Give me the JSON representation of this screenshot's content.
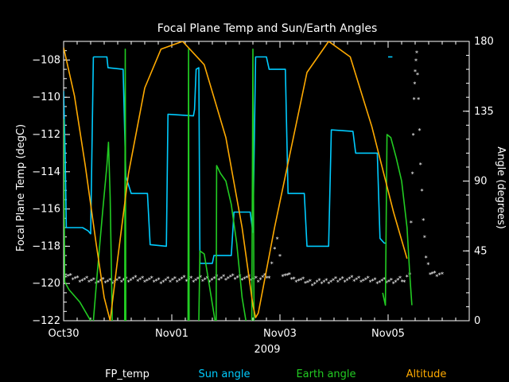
{
  "chart_data": {
    "type": "line",
    "title": "Focal Plane Temp and Sun/Earth Angles",
    "xlabel": "2009",
    "ylabel_left": "Focal Plane Temp (degC)",
    "ylabel_right": "Angle (degrees)",
    "x_unit": "days since Oct30 2009",
    "xlim": [
      0,
      7.5
    ],
    "xticks": [
      {
        "x": 0,
        "label": "Oct30"
      },
      {
        "x": 2,
        "label": "Nov01"
      },
      {
        "x": 4,
        "label": "Nov03"
      },
      {
        "x": 6,
        "label": "Nov05"
      }
    ],
    "ylim_left": [
      -122,
      -107
    ],
    "yticks_left": [
      {
        "value": -108,
        "label": "−108"
      },
      {
        "value": -110,
        "label": "−110"
      },
      {
        "value": -112,
        "label": "−112"
      },
      {
        "value": -114,
        "label": "−114"
      },
      {
        "value": -116,
        "label": "−116"
      },
      {
        "value": -118,
        "label": "−118"
      },
      {
        "value": -120,
        "label": "−120"
      },
      {
        "value": -122,
        "label": "−122"
      }
    ],
    "ylim_right": [
      0,
      180
    ],
    "yticks_right": [
      {
        "value": 0,
        "label": "0"
      },
      {
        "value": 45,
        "label": "45"
      },
      {
        "value": 90,
        "label": "90"
      },
      {
        "value": 135,
        "label": "135"
      },
      {
        "value": 180,
        "label": "180"
      }
    ],
    "legend_position": "bottom",
    "series": [
      {
        "name": "FP_temp",
        "axis": "left",
        "color": "#ffffff",
        "style": "scatter",
        "points": [
          [
            0.0,
            -119.6
          ],
          [
            0.3,
            -119.8
          ],
          [
            0.6,
            -119.9
          ],
          [
            0.9,
            -119.9
          ],
          [
            1.2,
            -119.8
          ],
          [
            1.5,
            -119.8
          ],
          [
            1.8,
            -119.9
          ],
          [
            2.1,
            -119.8
          ],
          [
            2.4,
            -119.8
          ],
          [
            2.7,
            -119.8
          ],
          [
            3.0,
            -119.7
          ],
          [
            3.3,
            -119.7
          ],
          [
            3.6,
            -119.8
          ],
          [
            3.8,
            -119.6
          ],
          [
            3.95,
            -117.5
          ],
          [
            4.05,
            -119.5
          ],
          [
            4.3,
            -119.8
          ],
          [
            4.6,
            -120.0
          ],
          [
            4.9,
            -119.9
          ],
          [
            5.2,
            -119.8
          ],
          [
            5.5,
            -119.8
          ],
          [
            5.8,
            -119.9
          ],
          [
            6.1,
            -119.9
          ],
          [
            6.3,
            -119.8
          ],
          [
            6.4,
            -119.4
          ],
          [
            6.45,
            -114.0
          ],
          [
            6.48,
            -110.0
          ],
          [
            6.5,
            -108.5
          ],
          [
            6.53,
            -107.5
          ],
          [
            6.56,
            -110.0
          ],
          [
            6.6,
            -113.5
          ],
          [
            6.65,
            -116.5
          ],
          [
            6.7,
            -118.5
          ],
          [
            6.78,
            -119.4
          ],
          [
            6.9,
            -119.5
          ],
          [
            7.0,
            -119.5
          ]
        ]
      },
      {
        "name": "Sun angle",
        "axis": "right",
        "color": "#00ccff",
        "style": "step",
        "segments": [
          [
            [
              0.0,
              148
            ],
            [
              0.03,
              105
            ],
            [
              0.05,
              60
            ],
            [
              0.35,
              60
            ],
            [
              0.45,
              58
            ],
            [
              0.5,
              56
            ],
            [
              0.55,
              170
            ]
          ],
          [
            [
              0.55,
              170
            ],
            [
              0.8,
              170
            ],
            [
              0.82,
              163
            ],
            [
              1.1,
              162
            ],
            [
              1.15,
              93
            ],
            [
              1.25,
              82
            ],
            [
              1.55,
              82
            ],
            [
              1.6,
              49
            ],
            [
              1.9,
              48
            ],
            [
              1.93,
              133
            ],
            [
              2.4,
              132
            ],
            [
              2.42,
              136
            ],
            [
              2.45,
              162
            ],
            [
              2.5,
              163
            ],
            [
              2.52,
              37
            ]
          ],
          [
            [
              2.52,
              37
            ],
            [
              2.75,
              37
            ],
            [
              2.78,
              42
            ],
            [
              3.1,
              42
            ],
            [
              3.15,
              70
            ],
            [
              3.45,
              70
            ],
            [
              3.5,
              57
            ],
            [
              3.55,
              170
            ],
            [
              3.75,
              170
            ],
            [
              3.8,
              162
            ],
            [
              4.1,
              162
            ],
            [
              4.15,
              82
            ],
            [
              4.45,
              82
            ],
            [
              4.5,
              48
            ],
            [
              4.9,
              48
            ],
            [
              4.95,
              123
            ],
            [
              5.35,
              122
            ],
            [
              5.4,
              108
            ],
            [
              5.8,
              108
            ],
            [
              5.85,
              53
            ],
            [
              5.93,
              50
            ],
            [
              5.96,
              50
            ]
          ],
          [
            [
              6.0,
              170
            ],
            [
              6.08,
              170
            ]
          ]
        ]
      },
      {
        "name": "Earth angle",
        "axis": "right",
        "color": "#22cc22",
        "style": "line",
        "segments": [
          [
            [
              0.0,
              130
            ],
            [
              0.02,
              25
            ],
            [
              0.1,
              20
            ],
            [
              0.3,
              12
            ],
            [
              0.5,
              0
            ]
          ],
          [
            [
              0.55,
              0
            ],
            [
              0.62,
              30
            ],
            [
              0.72,
              70
            ],
            [
              0.8,
              100
            ],
            [
              0.83,
              115
            ],
            [
              0.86,
              80
            ],
            [
              0.9,
              0
            ]
          ],
          [
            [
              1.13,
              0
            ],
            [
              1.14,
              175
            ],
            [
              1.15,
              0
            ]
          ],
          [
            [
              2.3,
              0
            ],
            [
              2.31,
              175
            ],
            [
              2.32,
              0
            ]
          ],
          [
            [
              2.5,
              0
            ],
            [
              2.52,
              45
            ],
            [
              2.6,
              43
            ],
            [
              2.8,
              0
            ]
          ],
          [
            [
              2.82,
              0
            ],
            [
              2.83,
              100
            ],
            [
              2.9,
              95
            ],
            [
              3.0,
              90
            ],
            [
              3.1,
              75
            ],
            [
              3.2,
              50
            ],
            [
              3.3,
              15
            ],
            [
              3.37,
              0
            ]
          ],
          [
            [
              3.48,
              0
            ],
            [
              3.5,
              175
            ],
            [
              3.52,
              0
            ]
          ],
          [
            [
              5.9,
              18
            ],
            [
              5.95,
              10
            ],
            [
              5.98,
              120
            ],
            [
              6.05,
              118
            ],
            [
              6.15,
              105
            ],
            [
              6.25,
              90
            ],
            [
              6.35,
              60
            ],
            [
              6.4,
              30
            ],
            [
              6.44,
              10
            ]
          ]
        ]
      },
      {
        "name": "Altitude",
        "axis": "right",
        "color": "#ffaa00",
        "style": "line",
        "segments": [
          [
            [
              0.0,
              176
            ],
            [
              0.2,
              145
            ],
            [
              0.4,
              100
            ],
            [
              0.6,
              50
            ],
            [
              0.75,
              15
            ],
            [
              0.86,
              0
            ]
          ],
          [
            [
              0.86,
              0
            ],
            [
              1.0,
              40
            ],
            [
              1.2,
              95
            ],
            [
              1.5,
              150
            ],
            [
              1.8,
              175
            ],
            [
              2.2,
              180
            ],
            [
              2.6,
              165
            ],
            [
              3.0,
              118
            ],
            [
              3.3,
              60
            ],
            [
              3.5,
              10
            ],
            [
              3.55,
              2
            ],
            [
              3.6,
              5
            ],
            [
              3.9,
              60
            ],
            [
              4.2,
              110
            ],
            [
              4.5,
              160
            ],
            [
              4.9,
              180
            ],
            [
              5.3,
              170
            ],
            [
              5.7,
              125
            ],
            [
              6.1,
              70
            ],
            [
              6.35,
              40
            ]
          ]
        ]
      }
    ]
  },
  "legend": {
    "items": [
      {
        "label": "FP_temp",
        "color": "#ffffff"
      },
      {
        "label": "Sun angle",
        "color": "#00ccff"
      },
      {
        "label": "Earth angle",
        "color": "#22cc22"
      },
      {
        "label": "Altitude",
        "color": "#ffaa00"
      }
    ]
  }
}
